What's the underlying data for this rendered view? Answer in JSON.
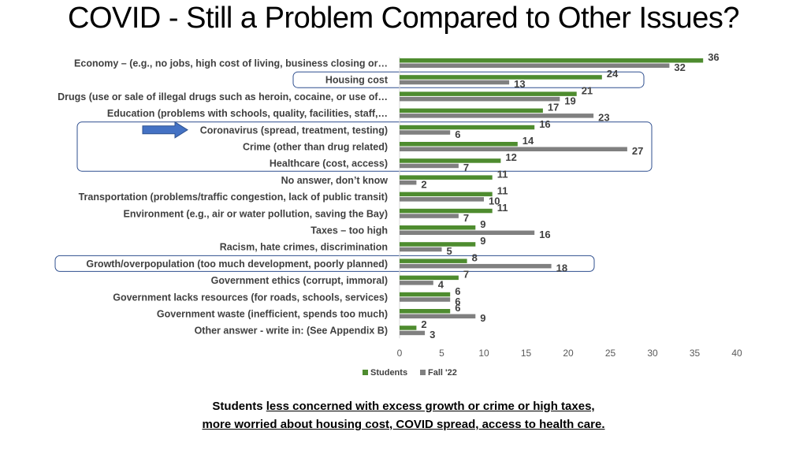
{
  "title": "COVID - Still a Problem Compared to Other Issues?",
  "caption": {
    "line1_prefix": "Students ",
    "line1_underlined": "less concerned with excess growth or crime or high taxes,",
    "line2_underlined": "more worried about housing cost, COVID spread, access to health care."
  },
  "colors": {
    "students": "#4e8c2f",
    "fall22": "#808080",
    "highlight_box": "#2f4f8f",
    "arrow": "#4472c4"
  },
  "chart_data": {
    "type": "bar",
    "orientation": "horizontal",
    "categories": [
      "Economy – (e.g., no jobs, high cost of living, business closing or…",
      "Housing cost",
      "Drugs (use or sale of illegal drugs such as heroin, cocaine, or use of…",
      "Education  (problems with schools, quality, facilities, staff,…",
      "Coronavirus (spread, treatment, testing)",
      "Crime (other than drug related)",
      "Healthcare (cost, access)",
      "No answer, don’t know",
      "Transportation (problems/traffic congestion, lack of public transit)",
      "Environment (e.g., air or water pollution, saving the Bay)",
      "Taxes – too high",
      "Racism, hate crimes, discrimination",
      "Growth/overpopulation (too much development, poorly planned)",
      "Government ethics (corrupt, immoral)",
      "Government lacks resources (for roads, schools, services)",
      "Government waste  (inefficient, spends too much)",
      "Other answer  - write in:  (See Appendix B)"
    ],
    "series": [
      {
        "name": "Students",
        "values": [
          36,
          24,
          21,
          17,
          16,
          14,
          12,
          11,
          11,
          11,
          9,
          9,
          8,
          7,
          6,
          6,
          2
        ]
      },
      {
        "name": "Fall '22",
        "values": [
          32,
          13,
          19,
          23,
          6,
          27,
          7,
          2,
          10,
          7,
          16,
          5,
          18,
          4,
          6,
          9,
          3
        ]
      }
    ],
    "xlim": [
      0,
      40
    ],
    "xticks": [
      0,
      5,
      10,
      15,
      20,
      25,
      30,
      35,
      40
    ],
    "legend_position": "bottom",
    "highlighted_groups": [
      [
        "Housing cost"
      ],
      [
        "Coronavirus (spread, treatment, testing)",
        "Crime (other than drug related)",
        "Healthcare (cost, access)"
      ],
      [
        "Growth/overpopulation (too much development, poorly planned)"
      ]
    ],
    "arrow_points_to": "Coronavirus (spread, treatment, testing)"
  }
}
